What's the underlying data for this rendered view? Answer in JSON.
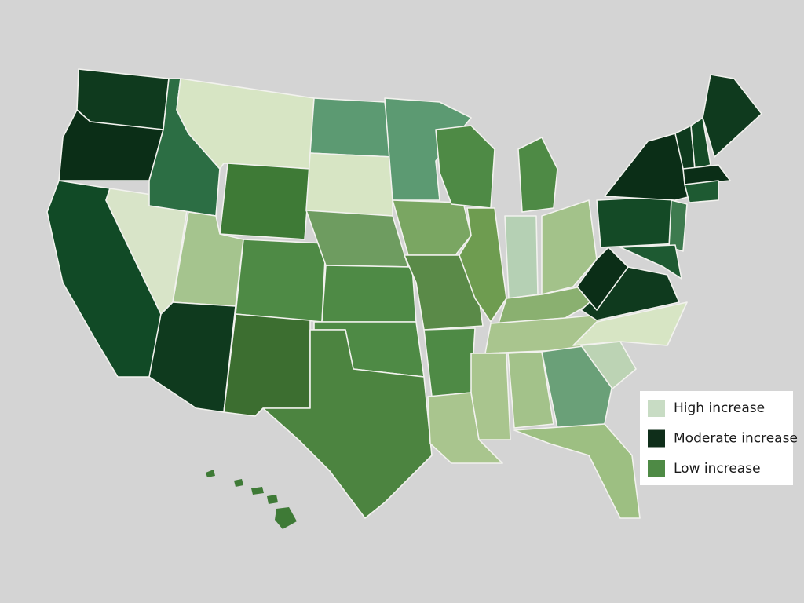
{
  "legend": {
    "items": [
      {
        "label": "High increase",
        "color": "#c8dcc4"
      },
      {
        "label": "Moderate increase",
        "color": "#0f2e1a"
      },
      {
        "label": "Low increase",
        "color": "#4e8a45"
      }
    ]
  }
}
